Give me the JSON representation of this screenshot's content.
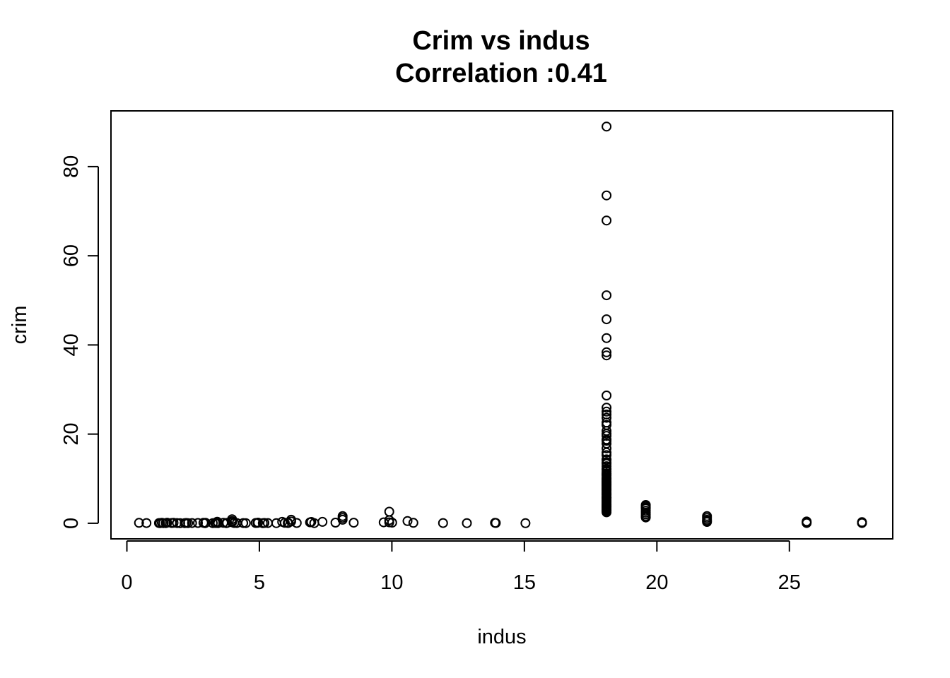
{
  "chart_data": {
    "type": "scatter",
    "title": "Crim vs indus",
    "subtitle": "Correlation :0.41",
    "xlabel": "indus",
    "ylabel": "crim",
    "xlim": [
      -0.6,
      28.9
    ],
    "ylim": [
      -3.5,
      92.5
    ],
    "x_ticks": [
      0,
      5,
      10,
      15,
      20,
      25
    ],
    "x_tick_labels": [
      "0",
      "5",
      "10",
      "15",
      "20",
      "25"
    ],
    "y_ticks": [
      0,
      20,
      40,
      60,
      80
    ],
    "y_tick_labels": [
      "0",
      "20",
      "40",
      "60",
      "80"
    ],
    "grid": false,
    "legend": "none",
    "marker": "open-circle",
    "points": [
      [
        0.46,
        0.1
      ],
      [
        0.74,
        0.05
      ],
      [
        1.21,
        0.05
      ],
      [
        1.25,
        0.02
      ],
      [
        1.32,
        0.1
      ],
      [
        1.38,
        0.03
      ],
      [
        1.47,
        0.04
      ],
      [
        1.52,
        0.13
      ],
      [
        1.69,
        0.06
      ],
      [
        1.76,
        0.1
      ],
      [
        1.89,
        0.05
      ],
      [
        2.01,
        0.02
      ],
      [
        2.18,
        0.03
      ],
      [
        2.24,
        0.06
      ],
      [
        2.31,
        0.03
      ],
      [
        2.46,
        0.05
      ],
      [
        2.68,
        0.06
      ],
      [
        2.89,
        0.09
      ],
      [
        2.95,
        0.02
      ],
      [
        2.97,
        0.11
      ],
      [
        3.24,
        0.03
      ],
      [
        3.33,
        0.07
      ],
      [
        3.37,
        0.05
      ],
      [
        3.41,
        0.35
      ],
      [
        3.44,
        0.04
      ],
      [
        3.64,
        0.1
      ],
      [
        3.75,
        0.04
      ],
      [
        3.78,
        0.08
      ],
      [
        3.97,
        0.9
      ],
      [
        3.97,
        0.5
      ],
      [
        3.97,
        0.2
      ],
      [
        4.05,
        0.06
      ],
      [
        4.15,
        0.05
      ],
      [
        4.39,
        0.05
      ],
      [
        4.49,
        0.04
      ],
      [
        4.86,
        0.07
      ],
      [
        4.93,
        0.08
      ],
      [
        4.95,
        0.15
      ],
      [
        5.13,
        0.02
      ],
      [
        5.19,
        0.07
      ],
      [
        5.32,
        0.05
      ],
      [
        5.64,
        0.04
      ],
      [
        5.86,
        0.31
      ],
      [
        5.96,
        0.09
      ],
      [
        6.07,
        0.06
      ],
      [
        6.09,
        0.08
      ],
      [
        6.2,
        0.8
      ],
      [
        6.2,
        0.4
      ],
      [
        6.41,
        0.07
      ],
      [
        6.91,
        0.2
      ],
      [
        6.96,
        0.3
      ],
      [
        7.07,
        0.03
      ],
      [
        7.38,
        0.32
      ],
      [
        7.87,
        0.15
      ],
      [
        8.14,
        1.6
      ],
      [
        8.14,
        1.2
      ],
      [
        8.14,
        0.8
      ],
      [
        8.56,
        0.12
      ],
      [
        9.69,
        0.2
      ],
      [
        9.9,
        2.6
      ],
      [
        9.9,
        0.7
      ],
      [
        9.9,
        0.2
      ],
      [
        10.01,
        0.15
      ],
      [
        10.59,
        0.5
      ],
      [
        10.81,
        0.1
      ],
      [
        11.93,
        0.05
      ],
      [
        12.83,
        0.03
      ],
      [
        13.89,
        0.09
      ],
      [
        13.92,
        0.07
      ],
      [
        15.04,
        0.02
      ],
      [
        18.1,
        88.98
      ],
      [
        18.1,
        73.53
      ],
      [
        18.1,
        67.92
      ],
      [
        18.1,
        51.14
      ],
      [
        18.1,
        45.75
      ],
      [
        18.1,
        41.53
      ],
      [
        18.1,
        38.35
      ],
      [
        18.1,
        37.66
      ],
      [
        18.1,
        28.66
      ],
      [
        18.1,
        25.94
      ],
      [
        18.1,
        25.05
      ],
      [
        18.1,
        24.39
      ],
      [
        18.1,
        23.65
      ],
      [
        18.1,
        22.6
      ],
      [
        18.1,
        22.05
      ],
      [
        18.1,
        20.72
      ],
      [
        18.1,
        20.08
      ],
      [
        18.1,
        19.61
      ],
      [
        18.1,
        18.81
      ],
      [
        18.1,
        18.5
      ],
      [
        18.1,
        17.87
      ],
      [
        18.1,
        16.81
      ],
      [
        18.1,
        15.86
      ],
      [
        18.1,
        15.29
      ],
      [
        18.1,
        14.33
      ],
      [
        18.1,
        14.24
      ],
      [
        18.1,
        13.68
      ],
      [
        18.1,
        13.36
      ],
      [
        18.1,
        12.8
      ],
      [
        18.1,
        12.25
      ],
      [
        18.1,
        12.05
      ],
      [
        18.1,
        11.58
      ],
      [
        18.1,
        11.16
      ],
      [
        18.1,
        11.08
      ],
      [
        18.1,
        10.83
      ],
      [
        18.1,
        10.67
      ],
      [
        18.1,
        10.23
      ],
      [
        18.1,
        10.06
      ],
      [
        18.1,
        9.92
      ],
      [
        18.1,
        9.72
      ],
      [
        18.1,
        9.51
      ],
      [
        18.1,
        9.34
      ],
      [
        18.1,
        9.17
      ],
      [
        18.1,
        8.98
      ],
      [
        18.1,
        8.79
      ],
      [
        18.1,
        8.65
      ],
      [
        18.1,
        8.49
      ],
      [
        18.1,
        8.27
      ],
      [
        18.1,
        8.05
      ],
      [
        18.1,
        7.84
      ],
      [
        18.1,
        7.67
      ],
      [
        18.1,
        7.52
      ],
      [
        18.1,
        7.37
      ],
      [
        18.1,
        7.05
      ],
      [
        18.1,
        6.8
      ],
      [
        18.1,
        6.65
      ],
      [
        18.1,
        6.44
      ],
      [
        18.1,
        6.29
      ],
      [
        18.1,
        5.87
      ],
      [
        18.1,
        5.82
      ],
      [
        18.1,
        5.69
      ],
      [
        18.1,
        5.58
      ],
      [
        18.1,
        5.29
      ],
      [
        18.1,
        5.09
      ],
      [
        18.1,
        4.87
      ],
      [
        18.1,
        4.67
      ],
      [
        18.1,
        4.42
      ],
      [
        18.1,
        4.22
      ],
      [
        18.1,
        4.09
      ],
      [
        18.1,
        3.84
      ],
      [
        18.1,
        3.68
      ],
      [
        18.1,
        3.47
      ],
      [
        18.1,
        3.32
      ],
      [
        18.1,
        3.07
      ],
      [
        18.1,
        2.92
      ],
      [
        18.1,
        2.73
      ],
      [
        18.1,
        2.45
      ],
      [
        19.58,
        4.1
      ],
      [
        19.58,
        3.8
      ],
      [
        19.58,
        3.5
      ],
      [
        19.58,
        3.3
      ],
      [
        19.58,
        2.8
      ],
      [
        19.58,
        2.4
      ],
      [
        19.58,
        2.0
      ],
      [
        19.58,
        1.6
      ],
      [
        19.58,
        1.3
      ],
      [
        21.89,
        1.6
      ],
      [
        21.89,
        1.2
      ],
      [
        21.89,
        0.8
      ],
      [
        21.89,
        0.5
      ],
      [
        21.89,
        0.3
      ],
      [
        25.65,
        0.4
      ],
      [
        25.65,
        0.2
      ],
      [
        25.65,
        0.05
      ],
      [
        27.74,
        0.25
      ],
      [
        27.74,
        0.1
      ],
      [
        27.74,
        0.05
      ]
    ]
  }
}
